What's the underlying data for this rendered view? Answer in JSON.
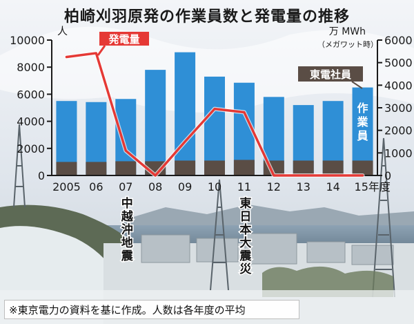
{
  "title": "柏崎刈羽原発の作業員数と発電量の推移",
  "note": "※東京電力の資料を基に作成。人数は各年度の平均",
  "colors": {
    "workers": "#2f8fd6",
    "employees": "#5a4d45",
    "power": "#e53935",
    "axis": "#1a1a1a"
  },
  "chart_data": {
    "type": "bar",
    "categories": [
      "2005",
      "06",
      "07",
      "08",
      "09",
      "10",
      "11",
      "12",
      "13",
      "14",
      "15"
    ],
    "category_suffix_last": "年度",
    "series": [
      {
        "name": "作業員",
        "kind": "stacked-bar",
        "axis": "left",
        "values": [
          5500,
          5420,
          5650,
          7800,
          9100,
          7300,
          6850,
          5800,
          5200,
          5500,
          6500
        ]
      },
      {
        "name": "東電社員",
        "kind": "stacked-bar-base",
        "axis": "left",
        "values": [
          1000,
          1000,
          1050,
          1050,
          1100,
          1100,
          1150,
          1100,
          1100,
          1100,
          1100
        ]
      },
      {
        "name": "発電量",
        "kind": "line",
        "axis": "right",
        "values": [
          5250,
          5420,
          1100,
          0,
          1500,
          2950,
          2800,
          0,
          0,
          0,
          0
        ]
      }
    ],
    "y_left": {
      "unit": "人",
      "ticks": [
        0,
        2000,
        4000,
        6000,
        8000,
        10000
      ],
      "ylim": [
        0,
        10000
      ]
    },
    "y_right": {
      "unit": "万 MWh",
      "unit_sub": "（メガワット時）",
      "ticks": [
        0,
        1000,
        2000,
        3000,
        4000,
        5000,
        6000
      ],
      "ylim": [
        0,
        6000
      ]
    },
    "events": [
      {
        "label": "中越沖地震",
        "category": "07"
      },
      {
        "label": "東日本大震災",
        "category": "11"
      }
    ],
    "grid": false
  }
}
